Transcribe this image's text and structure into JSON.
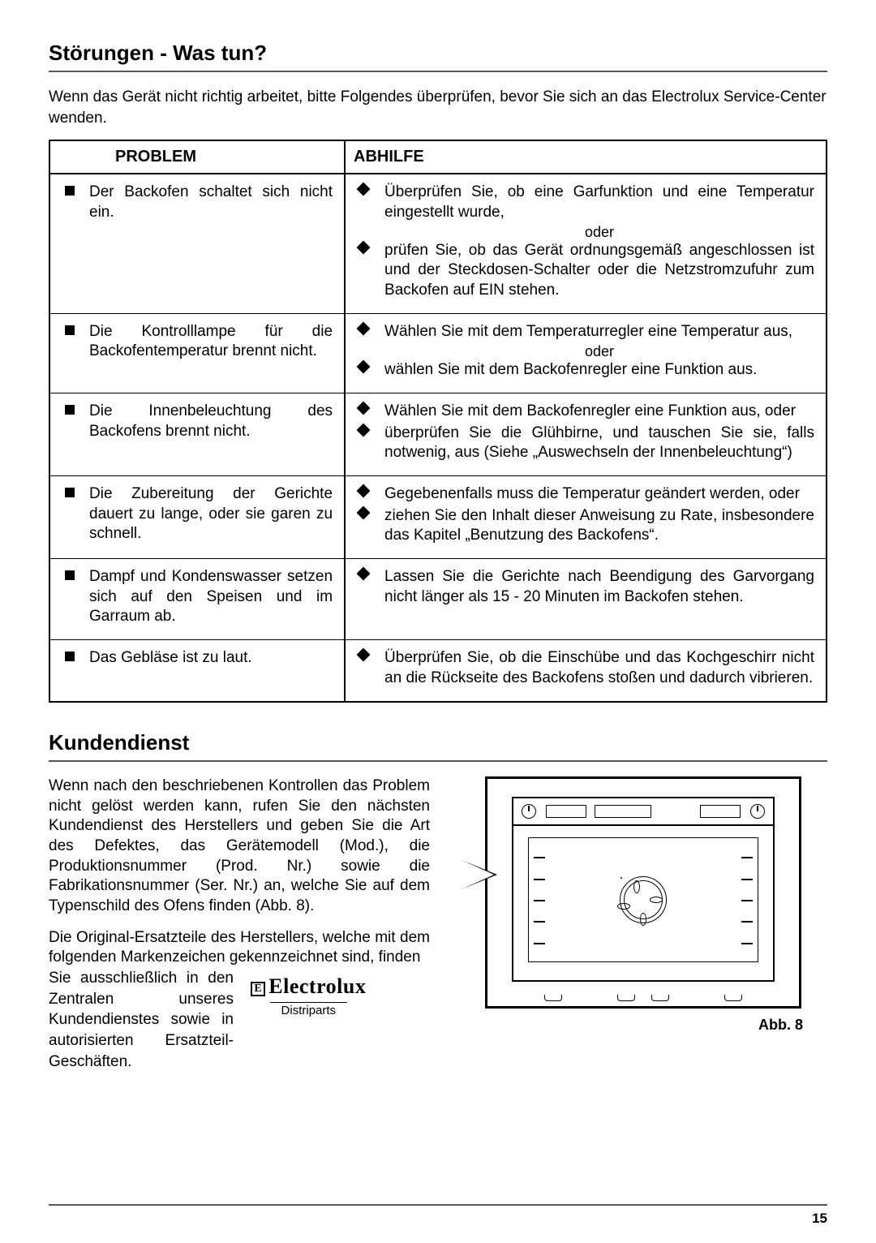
{
  "section1": {
    "title": "Störungen - Was tun?",
    "intro": "Wenn das Gerät nicht richtig arbeitet, bitte Folgendes überprüfen, bevor Sie sich an das Electrolux Service-Center wenden.",
    "table": {
      "headers": {
        "problem": "PROBLEM",
        "remedy": "ABHILFE"
      },
      "rows": [
        {
          "problem": [
            "Der Backofen schaltet sich nicht ein."
          ],
          "remedy": [
            "Überprüfen Sie, ob eine Garfunktion und eine Temperatur eingestellt wurde,",
            "oder",
            "prüfen Sie, ob das Gerät ordnungsgemäß angeschlossen ist und der Steckdosen-Schalter oder die Netzstromzufuhr zum Backofen auf EIN stehen."
          ]
        },
        {
          "problem": [
            "Die Kontrolllampe für die Backofentemperatur brennt nicht."
          ],
          "remedy": [
            "Wählen Sie mit dem Temperaturregler eine Temperatur aus,",
            "oder",
            "wählen Sie mit dem Backofenregler eine Funktion aus."
          ]
        },
        {
          "problem": [
            "Die Innenbeleuchtung des Backofens brennt nicht."
          ],
          "remedy": [
            "Wählen Sie mit dem Backofenregler eine Funktion aus, oder",
            "überprüfen Sie die Glühbirne, und tauschen Sie sie, falls notwenig, aus (Siehe „Auswechseln der Innenbeleuchtung“)"
          ]
        },
        {
          "problem": [
            "Die Zubereitung der Gerichte dauert zu lange, oder sie garen zu schnell."
          ],
          "remedy": [
            "Gegebenenfalls muss die Temperatur geändert werden, oder",
            "ziehen Sie den Inhalt dieser Anweisung zu Rate, insbesondere das Kapitel „Benutzung des Backofens“."
          ]
        },
        {
          "problem": [
            "Dampf und Kondenswasser setzen sich auf den Speisen und im Garraum ab."
          ],
          "remedy": [
            "Lassen Sie die Gerichte nach Beendigung des Garvorgang nicht länger als 15 - 20 Minuten im Backofen stehen."
          ]
        },
        {
          "problem": [
            "Das Gebläse ist zu laut."
          ],
          "remedy": [
            "Überprüfen Sie, ob die Einschübe und das Kochgeschirr nicht an die Rückseite des Backofens stoßen und dadurch vibrieren."
          ]
        }
      ]
    }
  },
  "section2": {
    "title": "Kundendienst",
    "para1": "Wenn nach den beschriebenen Kontrollen das Problem nicht gelöst werden kann, rufen Sie den nächsten Kundendienst des Herstellers und geben Sie die Art des Defektes, das Gerätemodell (Mod.), die Produktionsnummer (Prod. Nr.) sowie die Fabrikationsnummer (Ser. Nr.) an, welche Sie auf dem Typenschild des Ofens finden (Abb. 8).",
    "para2a": "Die Original-Ersatzteile des Herstellers, welche mit dem folgenden Markenzeichen gekennzeichnet sind, finden",
    "para2b": "Sie ausschließlich in den Zentralen unseres Kundendienstes sowie in autorisierten Ersatzteil-Geschäften.",
    "logo_name": "Electrolux",
    "logo_sub": "Distriparts",
    "fig_label": "Abb. 8"
  },
  "page_number": "15"
}
